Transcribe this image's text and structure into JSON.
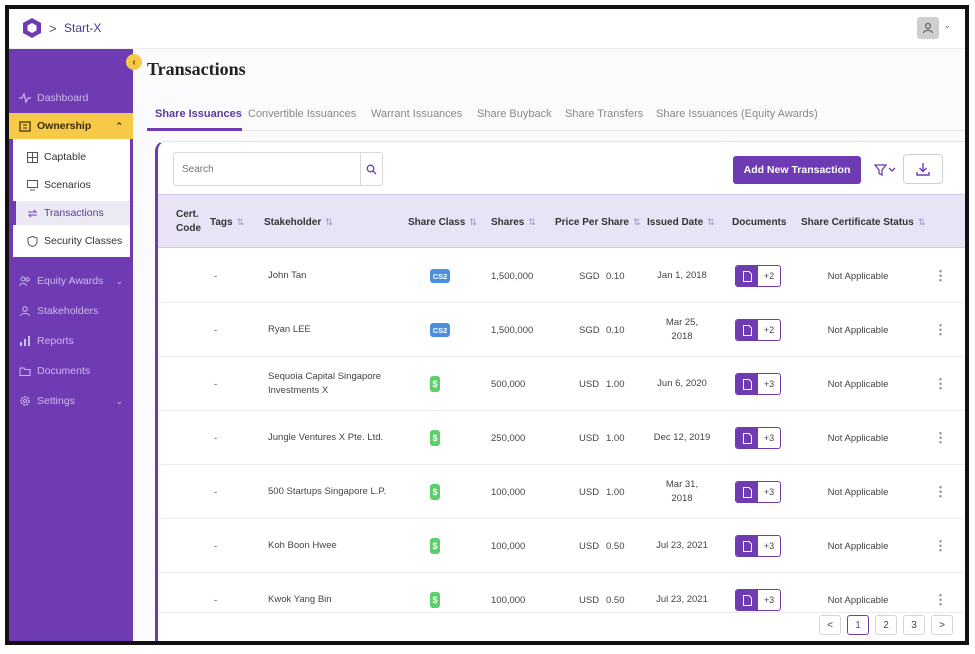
{
  "header": {
    "breadcrumb": "Start-X"
  },
  "sidebar": {
    "items": [
      {
        "label": "Dashboard",
        "icon": "pulse-icon"
      },
      {
        "label": "Ownership",
        "icon": "building-icon"
      },
      {
        "label": "Equity Awards",
        "icon": "users-icon"
      },
      {
        "label": "Stakeholders",
        "icon": "user-icon"
      },
      {
        "label": "Reports",
        "icon": "chart-icon"
      },
      {
        "label": "Documents",
        "icon": "folder-icon"
      },
      {
        "label": "Settings",
        "icon": "gear-icon"
      }
    ],
    "submenu": [
      {
        "label": "Captable",
        "icon": "grid-icon"
      },
      {
        "label": "Scenarios",
        "icon": "monitor-icon"
      },
      {
        "label": "Transactions",
        "icon": "transfer-icon"
      },
      {
        "label": "Security Classes",
        "icon": "shield-icon"
      }
    ]
  },
  "main": {
    "title": "Transactions",
    "tabs": [
      {
        "label": "Share Issuances",
        "active": true
      },
      {
        "label": "Convertible Issuances"
      },
      {
        "label": "Warrant Issuances"
      },
      {
        "label": "Share Buyback"
      },
      {
        "label": "Share Transfers"
      },
      {
        "label": "Share Issuances (Equity Awards)"
      }
    ],
    "search_placeholder": "Search",
    "add_button": "Add New Transaction",
    "columns": {
      "cert_code": "Cert. Code",
      "tags": "Tags",
      "stakeholder": "Stakeholder",
      "share_class": "Share Class",
      "shares": "Shares",
      "price": "Price Per Share",
      "issued_date": "Issued Date",
      "documents": "Documents",
      "cert_status": "Share Certificate Status"
    },
    "rows": [
      {
        "tags": "-",
        "stakeholder": "John Tan",
        "class": "CS2",
        "class_color": "#4a8fe0",
        "shares": "1,500,000",
        "currency": "SGD",
        "price": "0.10",
        "date": "Jan 1, 2018",
        "docs": "+2",
        "status": "Not Applicable"
      },
      {
        "tags": "-",
        "stakeholder": "Ryan LEE",
        "class": "CS2",
        "class_color": "#4a8fe0",
        "shares": "1,500,000",
        "currency": "SGD",
        "price": "0.10",
        "date": "Mar 25,\n2018",
        "docs": "+2",
        "status": "Not Applicable"
      },
      {
        "tags": "-",
        "stakeholder": "Sequoia Capital Singapore\nInvestments X",
        "class": "$",
        "class_color": "#5ccf6a",
        "shares": "500,000",
        "currency": "USD",
        "price": "1.00",
        "date": "Jun 6, 2020",
        "docs": "+3",
        "status": "Not Applicable"
      },
      {
        "tags": "-",
        "stakeholder": "Jungle Ventures X Pte. Ltd.",
        "class": "$",
        "class_color": "#5ccf6a",
        "shares": "250,000",
        "currency": "USD",
        "price": "1.00",
        "date": "Dec 12, 2019",
        "docs": "+3",
        "status": "Not Applicable"
      },
      {
        "tags": "-",
        "stakeholder": "500 Startups Singapore L.P.",
        "class": "$",
        "class_color": "#5ccf6a",
        "shares": "100,000",
        "currency": "USD",
        "price": "1.00",
        "date": "Mar 31,\n2018",
        "docs": "+3",
        "status": "Not Applicable"
      },
      {
        "tags": "-",
        "stakeholder": "Koh Boon Hwee",
        "class": "$",
        "class_color": "#5ccf6a",
        "shares": "100,000",
        "currency": "USD",
        "price": "0.50",
        "date": "Jul 23, 2021",
        "docs": "+3",
        "status": "Not Applicable"
      },
      {
        "tags": "-",
        "stakeholder": "Kwok Yang Bin",
        "class": "$",
        "class_color": "#5ccf6a",
        "shares": "100,000",
        "currency": "USD",
        "price": "0.50",
        "date": "Jul 23, 2021",
        "docs": "+3",
        "status": "Not Applicable"
      }
    ],
    "pagination": {
      "prev": "<",
      "pages": [
        "1",
        "2",
        "3"
      ],
      "current": "1",
      "next": ">"
    }
  },
  "colors": {
    "accent": "#6e3bb3",
    "highlight": "#f7c948",
    "header_bg": "#e9e3f6"
  }
}
